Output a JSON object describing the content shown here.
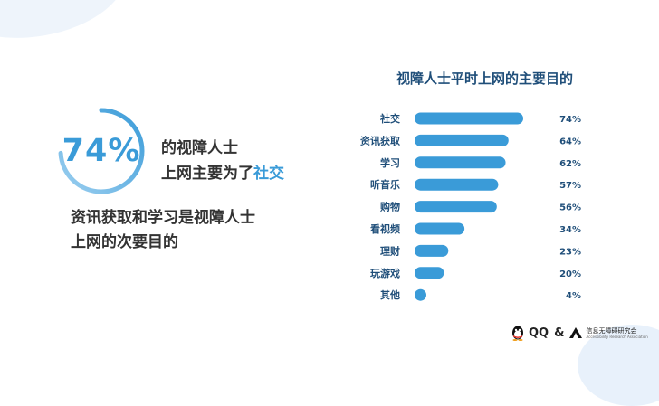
{
  "hero": {
    "percent": "74%",
    "ring_fraction": 0.74,
    "line1": "的视障人士",
    "line2_prefix": "上网主要为了",
    "line2_highlight": "社交"
  },
  "subtext": {
    "line1": "资讯获取和学习是视障人士",
    "line2": "上网的次要目的"
  },
  "chart_data": {
    "type": "bar",
    "orientation": "horizontal",
    "title": "视障人士平时上网的主要目的",
    "categories": [
      "社交",
      "资讯获取",
      "学习",
      "听音乐",
      "购物",
      "看视频",
      "理财",
      "玩游戏",
      "其他"
    ],
    "values": [
      74,
      64,
      62,
      57,
      56,
      34,
      23,
      20,
      4
    ],
    "value_labels": [
      "74%",
      "64%",
      "62%",
      "57%",
      "56%",
      "34%",
      "23%",
      "20%",
      "4%"
    ],
    "unit": "%",
    "xlim": [
      0,
      74
    ],
    "grid": false,
    "bar_color": "#3a9bd8"
  },
  "footer": {
    "brand1": "QQ",
    "amp": "&",
    "brand2": "信息无障碍研究会",
    "brand2_sub": "Accessibility Research Association"
  },
  "colors": {
    "accent": "#3a9bd8",
    "title": "#1f4e79",
    "text": "#333333"
  }
}
